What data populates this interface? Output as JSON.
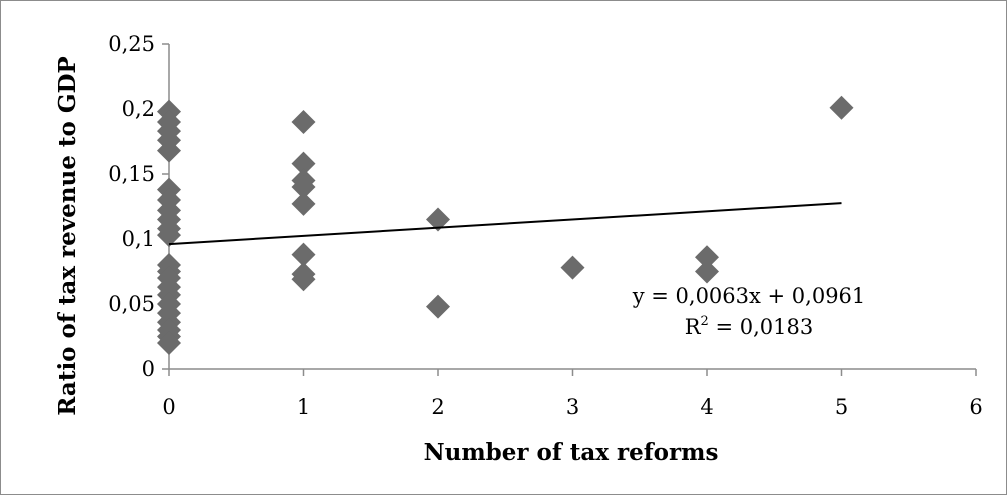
{
  "chart_data": {
    "type": "scatter",
    "xlabel": "Number of tax reforms",
    "ylabel": "Ratio of tax revenue to GDP",
    "xlim": [
      0,
      6
    ],
    "ylim": [
      0,
      0.25
    ],
    "x_ticks": [
      0,
      1,
      2,
      3,
      4,
      5,
      6
    ],
    "x_tick_labels": [
      "0",
      "1",
      "2",
      "3",
      "4",
      "5",
      "6"
    ],
    "y_ticks": [
      0,
      0.05,
      0.1,
      0.15,
      0.2,
      0.25
    ],
    "y_tick_labels": [
      "0",
      "0,05",
      "0,1",
      "0,15",
      "0,2",
      "0,25"
    ],
    "grid": false,
    "legend": "none",
    "marker": "diamond",
    "marker_color": "#6b6b6b",
    "line_color": "#000000",
    "series": [
      {
        "points": [
          [
            0,
            0.198
          ],
          [
            0,
            0.19
          ],
          [
            0,
            0.183
          ],
          [
            0,
            0.176
          ],
          [
            0,
            0.168
          ],
          [
            0,
            0.138
          ],
          [
            0,
            0.13
          ],
          [
            0,
            0.122
          ],
          [
            0,
            0.115
          ],
          [
            0,
            0.108
          ],
          [
            0,
            0.103
          ],
          [
            0,
            0.08
          ],
          [
            0,
            0.075
          ],
          [
            0,
            0.07
          ],
          [
            0,
            0.063
          ],
          [
            0,
            0.057
          ],
          [
            0,
            0.05
          ],
          [
            0,
            0.043
          ],
          [
            0,
            0.036
          ],
          [
            0,
            0.03
          ],
          [
            0,
            0.025
          ],
          [
            0,
            0.02
          ],
          [
            1,
            0.19
          ],
          [
            1,
            0.158
          ],
          [
            1,
            0.145
          ],
          [
            1,
            0.14
          ],
          [
            1,
            0.127
          ],
          [
            1,
            0.088
          ],
          [
            1,
            0.073
          ],
          [
            1,
            0.069
          ],
          [
            2,
            0.115
          ],
          [
            2,
            0.048
          ],
          [
            3,
            0.078
          ],
          [
            4,
            0.086
          ],
          [
            4,
            0.075
          ],
          [
            5,
            0.201
          ]
        ]
      }
    ],
    "trendline": {
      "slope": 0.0063,
      "intercept": 0.0961,
      "x_range": [
        0,
        5
      ]
    },
    "annotations": {
      "equation": "y = 0,0063x + 0,0961",
      "r2_base": "R",
      "r2_exp": "2",
      "r2_value": " = 0,0183"
    }
  }
}
